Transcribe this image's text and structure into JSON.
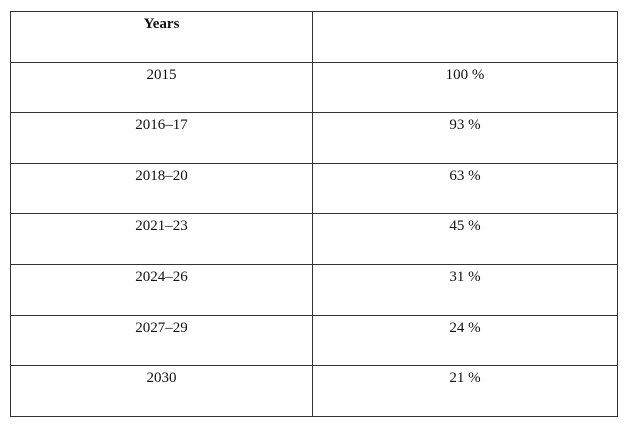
{
  "table": {
    "header": [
      "Years"
    ],
    "rows": [
      [
        "2015",
        "100 %"
      ],
      [
        "2016–17",
        "93 %"
      ],
      [
        "2018–20",
        "63 %"
      ],
      [
        "2021–23",
        "45 %"
      ],
      [
        "2024–26",
        "31 %"
      ],
      [
        "2027–29",
        "24 %"
      ],
      [
        "2030",
        "21 %"
      ]
    ]
  }
}
